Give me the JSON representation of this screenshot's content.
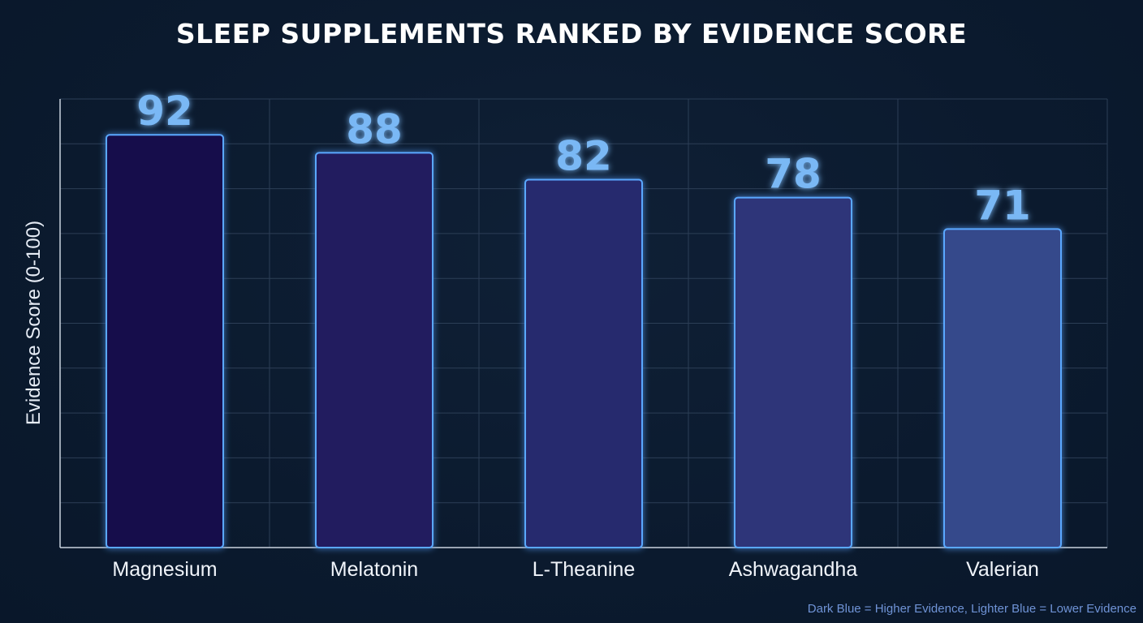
{
  "chart_data": {
    "type": "bar",
    "title": "SLEEP SUPPLEMENTS RANKED BY EVIDENCE SCORE",
    "xlabel": "",
    "ylabel": "Evidence Score (0-100)",
    "ylim": [
      0,
      100
    ],
    "grid": true,
    "categories": [
      "Magnesium",
      "Melatonin",
      "L-Theanine",
      "Ashwagandha",
      "Valerian"
    ],
    "values": [
      92,
      88,
      82,
      78,
      71
    ],
    "bar_colors": [
      "#13104c",
      "#221f5f",
      "#282b6e",
      "#2e3679",
      "#34488b"
    ],
    "bar_outline_color": "#5aa8ff",
    "data_label_color": "#7ab8f5",
    "note": "Dark Blue = Higher Evidence, Lighter Blue = Lower Evidence"
  }
}
